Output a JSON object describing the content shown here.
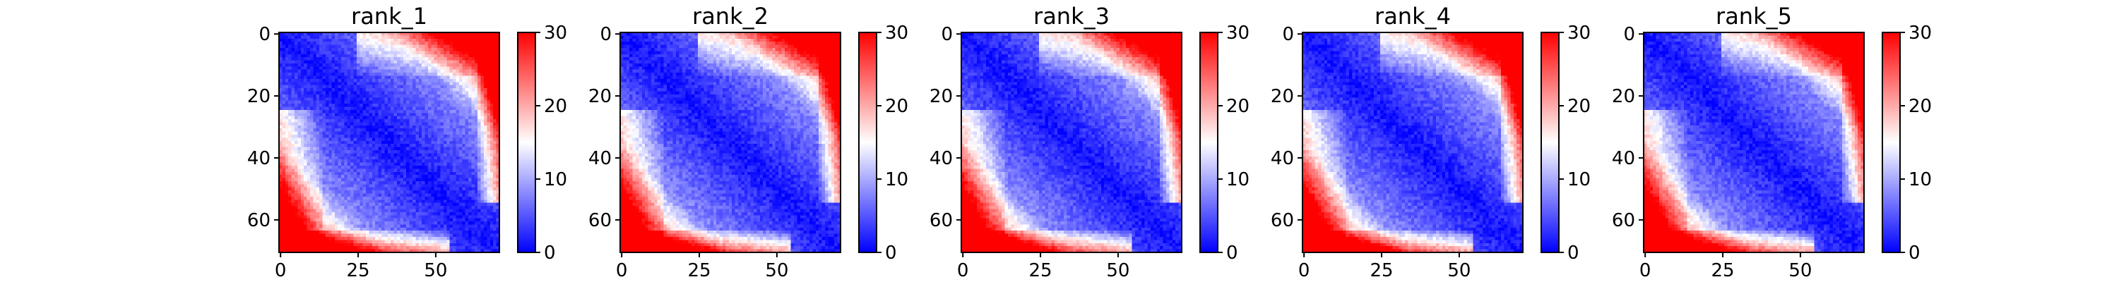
{
  "chart_data": [
    {
      "type": "heatmap",
      "title": "rank_1",
      "matrix_size": [
        71,
        71
      ],
      "xticks": [
        "0",
        "25",
        "50"
      ],
      "xtick_values": [
        0,
        25,
        50
      ],
      "yticks": [
        "0",
        "20",
        "40",
        "60"
      ],
      "ytick_values": [
        0,
        20,
        40,
        60
      ],
      "colorbar": {
        "ticks": [
          "0",
          "10",
          "20",
          "30"
        ],
        "tick_values": [
          0,
          10,
          20,
          30
        ],
        "range": [
          0,
          30
        ],
        "colormap": "bwr",
        "colors": [
          "#0000ff",
          "#ffffff",
          "#ff0000"
        ]
      }
    },
    {
      "type": "heatmap",
      "title": "rank_2",
      "matrix_size": [
        71,
        71
      ],
      "xticks": [
        "0",
        "25",
        "50"
      ],
      "xtick_values": [
        0,
        25,
        50
      ],
      "yticks": [
        "0",
        "20",
        "40",
        "60"
      ],
      "ytick_values": [
        0,
        20,
        40,
        60
      ],
      "colorbar": {
        "ticks": [
          "0",
          "10",
          "20",
          "30"
        ],
        "tick_values": [
          0,
          10,
          20,
          30
        ],
        "range": [
          0,
          30
        ],
        "colormap": "bwr",
        "colors": [
          "#0000ff",
          "#ffffff",
          "#ff0000"
        ]
      }
    },
    {
      "type": "heatmap",
      "title": "rank_3",
      "matrix_size": [
        71,
        71
      ],
      "xticks": [
        "0",
        "25",
        "50"
      ],
      "xtick_values": [
        0,
        25,
        50
      ],
      "yticks": [
        "0",
        "20",
        "40",
        "60"
      ],
      "ytick_values": [
        0,
        20,
        40,
        60
      ],
      "colorbar": {
        "ticks": [
          "0",
          "10",
          "20",
          "30"
        ],
        "tick_values": [
          0,
          10,
          20,
          30
        ],
        "range": [
          0,
          30
        ],
        "colormap": "bwr",
        "colors": [
          "#0000ff",
          "#ffffff",
          "#ff0000"
        ]
      }
    },
    {
      "type": "heatmap",
      "title": "rank_4",
      "matrix_size": [
        71,
        71
      ],
      "xticks": [
        "0",
        "25",
        "50"
      ],
      "xtick_values": [
        0,
        25,
        50
      ],
      "yticks": [
        "0",
        "20",
        "40",
        "60"
      ],
      "ytick_values": [
        0,
        20,
        40,
        60
      ],
      "colorbar": {
        "ticks": [
          "0",
          "10",
          "20",
          "30"
        ],
        "tick_values": [
          0,
          10,
          20,
          30
        ],
        "range": [
          0,
          30
        ],
        "colormap": "bwr",
        "colors": [
          "#0000ff",
          "#ffffff",
          "#ff0000"
        ]
      }
    },
    {
      "type": "heatmap",
      "title": "rank_5",
      "matrix_size": [
        71,
        71
      ],
      "xticks": [
        "0",
        "25",
        "50"
      ],
      "xtick_values": [
        0,
        25,
        50
      ],
      "yticks": [
        "0",
        "20",
        "40",
        "60"
      ],
      "ytick_values": [
        0,
        20,
        40,
        60
      ],
      "colorbar": {
        "ticks": [
          "0",
          "10",
          "20",
          "30"
        ],
        "tick_values": [
          0,
          10,
          20,
          30
        ],
        "range": [
          0,
          30
        ],
        "colormap": "bwr",
        "colors": [
          "#0000ff",
          "#ffffff",
          "#ff0000"
        ]
      }
    }
  ]
}
